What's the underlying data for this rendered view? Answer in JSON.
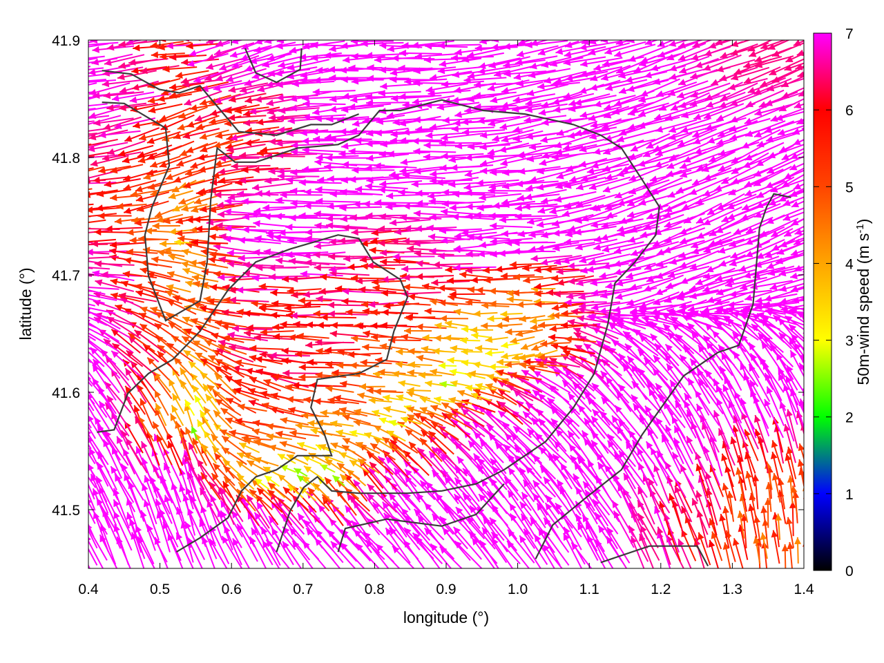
{
  "chart_data": {
    "type": "vector-field",
    "xlabel": "longitude (°)",
    "ylabel": "latitude (°)",
    "colorbar_label": "50m-wind speed (m s-1)",
    "colorbar_label_parts": {
      "main": "50m-wind speed (m s",
      "sup": "-1",
      "end": ")"
    },
    "xlim": [
      0.4,
      1.4
    ],
    "ylim": [
      41.45,
      41.9
    ],
    "xticks": [
      "0.4",
      "0.5",
      "0.6",
      "0.7",
      "0.8",
      "0.9",
      "1.0",
      "1.1",
      "1.2",
      "1.3",
      "1.4"
    ],
    "yticks": [
      "41.5",
      "41.6",
      "41.7",
      "41.8",
      "41.9"
    ],
    "colorbar": {
      "range": [
        0,
        7
      ],
      "ticks": [
        "0",
        "1",
        "2",
        "3",
        "4",
        "5",
        "6",
        "7"
      ],
      "stops": [
        "#000000",
        "#0000ff",
        "#00ff00",
        "#ffff00",
        "#ffa500",
        "#ff4500",
        "#ff0000",
        "#ff00ff"
      ]
    },
    "grid": false,
    "vector_grid": {
      "lon": [
        0.45,
        0.55,
        0.65,
        0.75,
        0.85,
        0.95,
        1.05,
        1.15,
        1.25,
        1.35
      ],
      "lat": [
        41.88,
        41.84,
        41.8,
        41.76,
        41.72,
        41.68,
        41.64,
        41.6,
        41.56,
        41.52,
        41.48
      ],
      "direction_deg": [
        [
          190,
          185,
          200,
          185,
          180,
          185,
          190,
          195,
          200,
          200
        ],
        [
          190,
          200,
          190,
          185,
          185,
          185,
          190,
          195,
          200,
          200
        ],
        [
          190,
          200,
          185,
          180,
          180,
          185,
          190,
          195,
          200,
          205
        ],
        [
          185,
          200,
          180,
          180,
          180,
          180,
          185,
          195,
          200,
          205
        ],
        [
          180,
          170,
          175,
          180,
          180,
          180,
          185,
          190,
          200,
          200
        ],
        [
          170,
          160,
          180,
          180,
          180,
          175,
          180,
          190,
          200,
          190
        ],
        [
          150,
          150,
          175,
          180,
          175,
          175,
          200,
          150,
          140,
          135
        ],
        [
          130,
          120,
          160,
          175,
          175,
          170,
          150,
          130,
          125,
          120
        ],
        [
          120,
          110,
          170,
          170,
          150,
          140,
          135,
          130,
          120,
          110
        ],
        [
          120,
          110,
          150,
          140,
          130,
          130,
          130,
          125,
          115,
          100
        ],
        [
          115,
          110,
          120,
          130,
          130,
          130,
          125,
          120,
          110,
          95
        ]
      ],
      "speed": [
        [
          7,
          6,
          7,
          7,
          7,
          7,
          7,
          7,
          7,
          6.5
        ],
        [
          7,
          5.5,
          6,
          7,
          7,
          7,
          7,
          7,
          7,
          7
        ],
        [
          6,
          5,
          6,
          7,
          7,
          7,
          7,
          7,
          7,
          7
        ],
        [
          6,
          4.5,
          7,
          7,
          7,
          7,
          7,
          7,
          7,
          7
        ],
        [
          6.5,
          4,
          7,
          7,
          6,
          7,
          7,
          7,
          7,
          7
        ],
        [
          7,
          4.5,
          6,
          6,
          6,
          5.5,
          4,
          7,
          7,
          7
        ],
        [
          7,
          5,
          6,
          6,
          5,
          3,
          4,
          7,
          7,
          7
        ],
        [
          7,
          3.5,
          6,
          5.5,
          4,
          3,
          7,
          7,
          7,
          7
        ],
        [
          7,
          3,
          5,
          4,
          3.5,
          7,
          7,
          7,
          7,
          7
        ],
        [
          7,
          7,
          3,
          3,
          7,
          7,
          7,
          7,
          7,
          5
        ],
        [
          7,
          7,
          7,
          7,
          7,
          7,
          7,
          7,
          6,
          5
        ]
      ]
    },
    "contours": [
      [
        [
          0.419,
          41.847
        ],
        [
          0.45,
          41.846
        ],
        [
          0.508,
          41.825
        ],
        [
          0.513,
          41.793
        ],
        [
          0.489,
          41.758
        ],
        [
          0.479,
          41.734
        ],
        [
          0.484,
          41.699
        ],
        [
          0.508,
          41.661
        ],
        [
          0.556,
          41.678
        ],
        [
          0.566,
          41.711
        ],
        [
          0.571,
          41.764
        ],
        [
          0.58,
          41.808
        ],
        [
          0.605,
          41.796
        ],
        [
          0.634,
          41.796
        ],
        [
          0.692,
          41.808
        ],
        [
          0.749,
          41.811
        ],
        [
          0.778,
          41.819
        ],
        [
          0.807,
          41.84
        ],
        [
          0.836,
          41.84
        ],
        [
          0.894,
          41.849
        ],
        [
          0.952,
          41.84
        ],
        [
          1.01,
          41.837
        ],
        [
          1.078,
          41.828
        ],
        [
          1.116,
          41.819
        ],
        [
          1.145,
          41.808
        ],
        [
          1.174,
          41.781
        ],
        [
          1.198,
          41.758
        ],
        [
          1.193,
          41.734
        ],
        [
          1.164,
          41.711
        ],
        [
          1.136,
          41.693
        ],
        [
          1.126,
          41.658
        ],
        [
          1.107,
          41.616
        ],
        [
          1.078,
          41.587
        ],
        [
          1.039,
          41.558
        ],
        [
          0.981,
          41.534
        ],
        [
          0.942,
          41.522
        ],
        [
          0.894,
          41.516
        ],
        [
          0.846,
          41.514
        ],
        [
          0.778,
          41.514
        ],
        [
          0.74,
          41.516
        ],
        [
          0.72,
          41.528
        ],
        [
          0.701,
          41.519
        ],
        [
          0.682,
          41.499
        ],
        [
          0.663,
          41.464
        ]
      ],
      [
        [
          0.412,
          41.566
        ],
        [
          0.436,
          41.568
        ],
        [
          0.455,
          41.599
        ],
        [
          0.484,
          41.616
        ],
        [
          0.518,
          41.628
        ],
        [
          0.556,
          41.652
        ],
        [
          0.595,
          41.687
        ],
        [
          0.634,
          41.711
        ],
        [
          0.682,
          41.722
        ],
        [
          0.749,
          41.734
        ],
        [
          0.778,
          41.731
        ],
        [
          0.798,
          41.711
        ],
        [
          0.836,
          41.696
        ],
        [
          0.846,
          41.681
        ],
        [
          0.827,
          41.652
        ],
        [
          0.817,
          41.628
        ],
        [
          0.778,
          41.616
        ],
        [
          0.72,
          41.611
        ],
        [
          0.711,
          41.587
        ],
        [
          0.73,
          41.564
        ],
        [
          0.74,
          41.546
        ],
        [
          0.692,
          41.546
        ],
        [
          0.663,
          41.534
        ],
        [
          0.634,
          41.528
        ],
        [
          0.614,
          41.516
        ],
        [
          0.595,
          41.493
        ],
        [
          0.556,
          41.476
        ],
        [
          0.523,
          41.464
        ]
      ],
      [
        [
          1.025,
          41.458
        ],
        [
          1.049,
          41.487
        ],
        [
          1.097,
          41.511
        ],
        [
          1.145,
          41.534
        ],
        [
          1.174,
          41.564
        ],
        [
          1.232,
          41.614
        ],
        [
          1.28,
          41.634
        ],
        [
          1.309,
          41.64
        ],
        [
          1.329,
          41.675
        ],
        [
          1.338,
          41.74
        ],
        [
          1.348,
          41.758
        ],
        [
          1.358,
          41.769
        ],
        [
          1.382,
          41.766
        ]
      ],
      [
        [
          0.749,
          41.464
        ],
        [
          0.759,
          41.484
        ],
        [
          0.817,
          41.492
        ],
        [
          0.894,
          41.486
        ],
        [
          0.942,
          41.496
        ],
        [
          0.981,
          41.522
        ]
      ],
      [
        [
          1.116,
          41.455
        ],
        [
          1.184,
          41.469
        ],
        [
          1.251,
          41.469
        ],
        [
          1.266,
          41.452
        ]
      ],
      [
        [
          0.619,
          41.893
        ],
        [
          0.634,
          41.872
        ],
        [
          0.663,
          41.864
        ],
        [
          0.696,
          41.875
        ],
        [
          0.698,
          41.893
        ]
      ],
      [
        [
          0.419,
          41.874
        ],
        [
          0.46,
          41.871
        ],
        [
          0.499,
          41.858
        ],
        [
          0.527,
          41.855
        ],
        [
          0.556,
          41.861
        ],
        [
          0.585,
          41.84
        ],
        [
          0.61,
          41.822
        ],
        [
          0.663,
          41.819
        ],
        [
          0.711,
          41.828
        ],
        [
          0.74,
          41.828
        ],
        [
          0.778,
          41.837
        ]
      ]
    ]
  }
}
